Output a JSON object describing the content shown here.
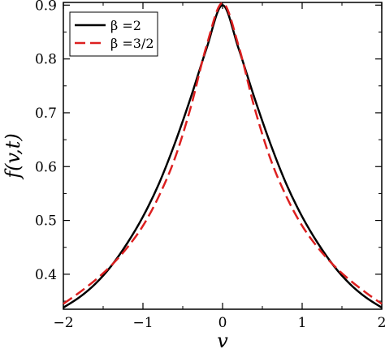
{
  "chart_data": {
    "type": "line",
    "title": "",
    "xlabel": "v",
    "ylabel": "f(v,t)",
    "xlim": [
      -2,
      2
    ],
    "ylim": [
      0.335,
      0.905
    ],
    "xticks": [
      -2,
      -1,
      0,
      1,
      2
    ],
    "xtick_labels": [
      "−2",
      "−1",
      "0",
      "1",
      "2"
    ],
    "yticks": [
      0.4,
      0.5,
      0.6,
      0.7,
      0.8,
      0.9
    ],
    "ytick_labels": [
      "0.4",
      "0.5",
      "0.6",
      "0.7",
      "0.8",
      "0.9"
    ],
    "grid": false,
    "legend_position": "top-left",
    "series": [
      {
        "name": "β =2",
        "color": "#000000",
        "style": "solid",
        "x": [
          -2,
          -1.8,
          -1.6,
          -1.4,
          -1.2,
          -1.0,
          -0.8,
          -0.6,
          -0.4,
          -0.2,
          0,
          0.2,
          0.4,
          0.6,
          0.8,
          1.0,
          1.2,
          1.4,
          1.6,
          1.8,
          2
        ],
        "y": [
          0.338,
          0.357,
          0.382,
          0.415,
          0.457,
          0.507,
          0.568,
          0.643,
          0.728,
          0.82,
          0.9,
          0.82,
          0.728,
          0.643,
          0.568,
          0.507,
          0.457,
          0.415,
          0.382,
          0.357,
          0.338
        ]
      },
      {
        "name": "β =3/2",
        "color": "#dd2020",
        "style": "dashed",
        "x": [
          -2,
          -1.8,
          -1.6,
          -1.4,
          -1.2,
          -1.0,
          -0.8,
          -0.6,
          -0.4,
          -0.2,
          0,
          0.2,
          0.4,
          0.6,
          0.8,
          1.0,
          1.2,
          1.4,
          1.6,
          1.8,
          2
        ],
        "y": [
          0.345,
          0.366,
          0.389,
          0.416,
          0.449,
          0.49,
          0.545,
          0.615,
          0.71,
          0.825,
          0.904,
          0.825,
          0.71,
          0.615,
          0.545,
          0.49,
          0.449,
          0.416,
          0.389,
          0.366,
          0.345
        ]
      }
    ]
  }
}
